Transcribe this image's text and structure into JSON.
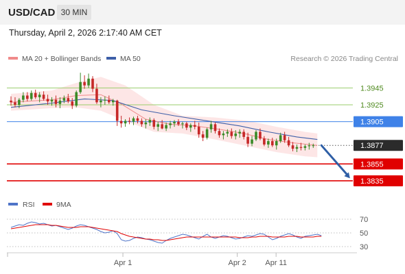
{
  "header": {
    "symbol": "USD/CAD",
    "timeframe": "30 MIN",
    "timestamp": "Thursday, April 2, 2026 2:17:40 AM CET"
  },
  "legend": {
    "ma20_label": "MA 20 + Bollinger Bands",
    "ma20_color": "#f08a8a",
    "ma50_label": "MA 50",
    "ma50_color": "#3d5fa8",
    "copyright": "Research © 2026 Trading Central"
  },
  "chart_data": [
    {
      "type": "candlestick",
      "title": "",
      "xlabel": "",
      "ylabel": "",
      "ylim": [
        1.3822,
        1.3968
      ],
      "x_ticks": [
        {
          "label": "Apr 1",
          "x": 19
        },
        {
          "label": "Apr 2",
          "x": 47
        },
        {
          "label": "Apr 11",
          "x": 56.5
        }
      ],
      "levels": [
        {
          "value": 1.3945,
          "label": "1.3945",
          "color": "#9acd6b",
          "label_style": "green"
        },
        {
          "value": 1.3925,
          "label": "1.3925",
          "color": "#9acd6b",
          "label_style": "green"
        },
        {
          "value": 1.3905,
          "label": "1.3905",
          "color": "#3f82e8",
          "label_style": "blue-tag"
        },
        {
          "value": 1.3877,
          "label": "1.3877",
          "color": "#333333",
          "label_style": "dark-tag",
          "dotted": true
        },
        {
          "value": 1.3855,
          "label": "1.3855",
          "color": "#e00000",
          "label_style": "red-tag"
        },
        {
          "value": 1.3835,
          "label": "1.3835",
          "color": "#e00000",
          "label_style": "red-tag"
        }
      ],
      "candles": [
        [
          1.393,
          1.3935,
          1.3924,
          1.3928
        ],
        [
          1.3928,
          1.3934,
          1.3922,
          1.3925
        ],
        [
          1.3925,
          1.3933,
          1.3921,
          1.3931
        ],
        [
          1.3931,
          1.394,
          1.3928,
          1.3936
        ],
        [
          1.3936,
          1.394,
          1.3929,
          1.3932
        ],
        [
          1.3932,
          1.3942,
          1.393,
          1.3939
        ],
        [
          1.3939,
          1.3943,
          1.3932,
          1.3934
        ],
        [
          1.3934,
          1.394,
          1.3928,
          1.3937
        ],
        [
          1.3937,
          1.3941,
          1.393,
          1.3932
        ],
        [
          1.3932,
          1.3937,
          1.3925,
          1.3929
        ],
        [
          1.3929,
          1.3934,
          1.3924,
          1.3931
        ],
        [
          1.3931,
          1.3936,
          1.3922,
          1.3926
        ],
        [
          1.3926,
          1.3934,
          1.3921,
          1.393
        ],
        [
          1.393,
          1.3936,
          1.3927,
          1.3933
        ],
        [
          1.3933,
          1.3938,
          1.3927,
          1.3929
        ],
        [
          1.3929,
          1.3933,
          1.392,
          1.3924
        ],
        [
          1.3924,
          1.3942,
          1.3922,
          1.394
        ],
        [
          1.394,
          1.3963,
          1.3938,
          1.3952
        ],
        [
          1.3952,
          1.396,
          1.3944,
          1.3948
        ],
        [
          1.3948,
          1.3962,
          1.3945,
          1.3956
        ],
        [
          1.3956,
          1.3959,
          1.394,
          1.3944
        ],
        [
          1.3944,
          1.395,
          1.3926,
          1.3928
        ],
        [
          1.3928,
          1.3934,
          1.3922,
          1.393
        ],
        [
          1.393,
          1.3935,
          1.3925,
          1.3931
        ],
        [
          1.3931,
          1.3936,
          1.3926,
          1.3928
        ],
        [
          1.3928,
          1.3932,
          1.3924,
          1.393
        ],
        [
          1.393,
          1.3931,
          1.39,
          1.3906
        ],
        [
          1.3906,
          1.3912,
          1.3898,
          1.3903
        ],
        [
          1.3903,
          1.3908,
          1.3899,
          1.3906
        ],
        [
          1.3906,
          1.391,
          1.3902,
          1.3905
        ],
        [
          1.3905,
          1.3911,
          1.3901,
          1.3909
        ],
        [
          1.3909,
          1.3912,
          1.3903,
          1.3906
        ],
        [
          1.3906,
          1.3909,
          1.3899,
          1.3902
        ],
        [
          1.3902,
          1.3908,
          1.3897,
          1.3904
        ],
        [
          1.3904,
          1.391,
          1.39,
          1.3907
        ],
        [
          1.3907,
          1.3909,
          1.3896,
          1.3899
        ],
        [
          1.3899,
          1.3905,
          1.3894,
          1.3902
        ],
        [
          1.3902,
          1.3907,
          1.3896,
          1.3897
        ],
        [
          1.3897,
          1.3904,
          1.3894,
          1.3901
        ],
        [
          1.3901,
          1.3906,
          1.3897,
          1.3903
        ],
        [
          1.3903,
          1.3907,
          1.3899,
          1.3905
        ],
        [
          1.3905,
          1.3908,
          1.39,
          1.3902
        ],
        [
          1.3902,
          1.3905,
          1.3897,
          1.3903
        ],
        [
          1.3903,
          1.3905,
          1.3895,
          1.3898
        ],
        [
          1.3898,
          1.3903,
          1.3893,
          1.3901
        ],
        [
          1.3901,
          1.3906,
          1.3896,
          1.3899
        ],
        [
          1.3899,
          1.3904,
          1.3886,
          1.389
        ],
        [
          1.389,
          1.3894,
          1.3882,
          1.3886
        ],
        [
          1.3886,
          1.3898,
          1.3884,
          1.3896
        ],
        [
          1.3896,
          1.3906,
          1.3892,
          1.3902
        ],
        [
          1.3902,
          1.3904,
          1.3891,
          1.3894
        ],
        [
          1.3894,
          1.3897,
          1.3886,
          1.3889
        ],
        [
          1.3889,
          1.3894,
          1.3884,
          1.3891
        ],
        [
          1.3891,
          1.3896,
          1.3887,
          1.3893
        ],
        [
          1.3893,
          1.3897,
          1.3885,
          1.3888
        ],
        [
          1.3888,
          1.3895,
          1.3884,
          1.3891
        ],
        [
          1.3891,
          1.3896,
          1.3886,
          1.3893
        ],
        [
          1.3893,
          1.3896,
          1.3884,
          1.3887
        ],
        [
          1.3887,
          1.3892,
          1.3875,
          1.3879
        ],
        [
          1.3879,
          1.3888,
          1.3876,
          1.3884
        ],
        [
          1.3884,
          1.3895,
          1.3882,
          1.3893
        ],
        [
          1.3893,
          1.3897,
          1.3883,
          1.3885
        ],
        [
          1.3885,
          1.3888,
          1.3876,
          1.3878
        ],
        [
          1.3878,
          1.3885,
          1.3874,
          1.3882
        ],
        [
          1.3882,
          1.3886,
          1.3875,
          1.3877
        ],
        [
          1.3877,
          1.3885,
          1.3872,
          1.3882
        ],
        [
          1.3882,
          1.3892,
          1.388,
          1.3889
        ],
        [
          1.3889,
          1.3893,
          1.388,
          1.3883
        ],
        [
          1.3883,
          1.3887,
          1.3875,
          1.3877
        ],
        [
          1.3877,
          1.3881,
          1.387,
          1.3873
        ],
        [
          1.3873,
          1.3878,
          1.3869,
          1.3875
        ],
        [
          1.3875,
          1.388,
          1.3871,
          1.3874
        ],
        [
          1.3874,
          1.3878,
          1.3871,
          1.3876
        ],
        [
          1.3876,
          1.388,
          1.3872,
          1.3877
        ],
        [
          1.3877,
          1.3879,
          1.3874,
          1.3877
        ]
      ],
      "series": [
        {
          "name": "MA 20",
          "color": "#f08a8a",
          "values": [
            [
              0,
              1.3928
            ],
            [
              10,
              1.3931
            ],
            [
              16,
              1.3936
            ],
            [
              22,
              1.3937
            ],
            [
              27,
              1.3926
            ],
            [
              33,
              1.3908
            ],
            [
              39,
              1.3902
            ],
            [
              45,
              1.39
            ],
            [
              51,
              1.3896
            ],
            [
              57,
              1.3891
            ],
            [
              63,
              1.3884
            ],
            [
              69,
              1.388
            ],
            [
              75,
              1.3877
            ]
          ]
        },
        {
          "name": "MA 50",
          "color": "#3d5fa8",
          "values": [
            [
              0,
              1.3922
            ],
            [
              10,
              1.3927
            ],
            [
              18,
              1.3932
            ],
            [
              25,
              1.393
            ],
            [
              32,
              1.3919
            ],
            [
              40,
              1.3912
            ],
            [
              48,
              1.3906
            ],
            [
              56,
              1.39
            ],
            [
              63,
              1.3893
            ],
            [
              70,
              1.3887
            ],
            [
              75,
              1.3884
            ]
          ]
        },
        {
          "name": "Bollinger upper",
          "color": "#fbdede",
          "values": [
            [
              0,
              1.3938
            ],
            [
              10,
              1.3942
            ],
            [
              16,
              1.3951
            ],
            [
              22,
              1.3958
            ],
            [
              28,
              1.3948
            ],
            [
              35,
              1.3925
            ],
            [
              42,
              1.3912
            ],
            [
              50,
              1.391
            ],
            [
              58,
              1.3906
            ],
            [
              65,
              1.3899
            ],
            [
              72,
              1.3893
            ],
            [
              75,
              1.3891
            ]
          ]
        },
        {
          "name": "Bollinger lower",
          "color": "#fbdede",
          "values": [
            [
              0,
              1.3918
            ],
            [
              10,
              1.3921
            ],
            [
              16,
              1.3922
            ],
            [
              22,
              1.3918
            ],
            [
              28,
              1.3906
            ],
            [
              35,
              1.3893
            ],
            [
              42,
              1.3891
            ],
            [
              50,
              1.3884
            ],
            [
              58,
              1.3876
            ],
            [
              65,
              1.3869
            ],
            [
              72,
              1.3864
            ],
            [
              75,
              1.3863
            ]
          ]
        }
      ],
      "projection": {
        "from": [
          76,
          1.3877
        ],
        "to": [
          83,
          1.3838
        ],
        "color": "#2f5fa6"
      }
    },
    {
      "type": "line",
      "title": "",
      "ylim": [
        22,
        78
      ],
      "y_ticks": [
        70,
        50,
        30
      ],
      "legend": [
        {
          "label": "RSI",
          "color": "#4f74c8"
        },
        {
          "label": "9MA",
          "color": "#e00000"
        }
      ],
      "series": [
        {
          "name": "RSI",
          "color": "#4f74c8",
          "values": [
            58,
            60,
            62,
            61,
            64,
            66,
            65,
            63,
            64,
            62,
            60,
            61,
            59,
            57,
            55,
            57,
            60,
            62,
            61,
            59,
            57,
            55,
            52,
            50,
            51,
            53,
            49,
            40,
            38,
            39,
            42,
            44,
            43,
            41,
            40,
            38,
            36,
            35,
            39,
            42,
            44,
            46,
            48,
            47,
            45,
            43,
            41,
            45,
            48,
            44,
            42,
            44,
            46,
            45,
            43,
            41,
            42,
            44,
            46,
            45,
            47,
            49,
            48,
            44,
            40,
            42,
            45,
            47,
            49,
            47,
            44,
            42,
            45,
            46,
            47,
            48,
            46
          ]
        },
        {
          "name": "9MA",
          "color": "#e00000",
          "values": [
            56,
            57,
            58,
            59,
            60,
            61,
            62,
            62,
            62,
            62,
            61,
            61,
            60,
            59,
            58,
            58,
            58,
            59,
            59,
            59,
            58,
            57,
            56,
            55,
            54,
            53,
            52,
            49,
            47,
            45,
            44,
            43,
            42,
            41,
            41,
            40,
            40,
            39,
            39,
            40,
            41,
            42,
            43,
            44,
            44,
            44,
            44,
            44,
            44,
            44,
            44,
            44,
            44,
            44,
            44,
            44,
            43,
            43,
            43,
            44,
            44,
            45,
            45,
            45,
            44,
            44,
            44,
            44,
            45,
            45,
            45,
            44,
            44,
            44,
            44,
            45,
            45
          ]
        }
      ]
    }
  ]
}
